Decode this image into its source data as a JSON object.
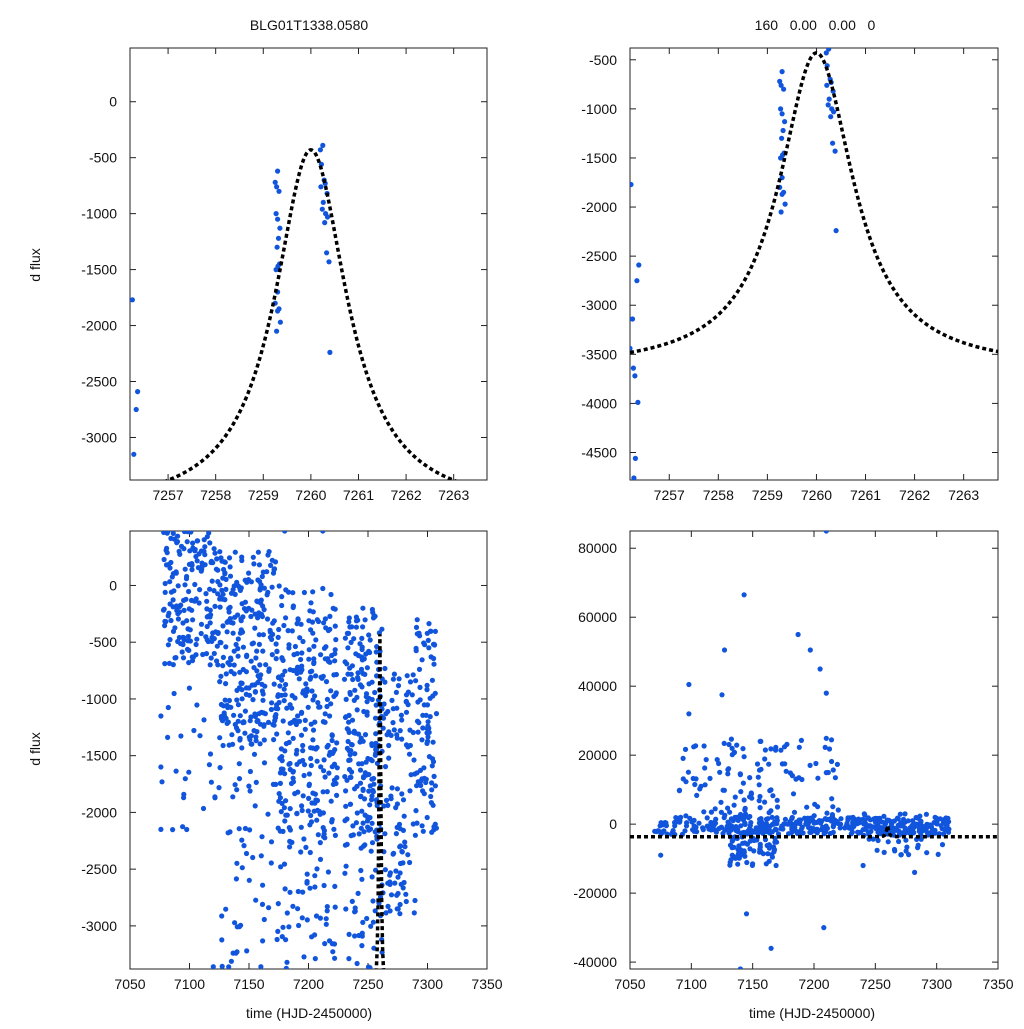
{
  "header": {
    "left_title": "BLG01T1338.0580",
    "right_title": "160   0.00   0.00   0"
  },
  "labels": {
    "ylabel": "d flux",
    "xlabel": "time (HJD-2450000)"
  },
  "colors": {
    "points": "#1155dd",
    "model": "#000000"
  },
  "model": {
    "t0": 7260.0,
    "tE": 0.92,
    "f_peak": -430,
    "f_base": -3660
  },
  "chart_data": [
    {
      "id": "tl",
      "type": "scatter",
      "title": "BLG01T1338.0580",
      "ylabel": "d flux",
      "xlabel": "",
      "xlim": [
        7256.2,
        7263.7
      ],
      "ylim": [
        -3380,
        480
      ],
      "xticks": [
        7257,
        7258,
        7259,
        7260,
        7261,
        7262,
        7263
      ],
      "yticks": [
        0,
        -500,
        -1000,
        -1500,
        -2000,
        -2500,
        -3000
      ],
      "points": [
        [
          7256.25,
          -1770
        ],
        [
          7256.36,
          -2590
        ],
        [
          7256.33,
          -2750
        ],
        [
          7256.28,
          -3150
        ],
        [
          7259.25,
          -720
        ],
        [
          7259.3,
          -620
        ],
        [
          7259.28,
          -760
        ],
        [
          7259.33,
          -800
        ],
        [
          7259.27,
          -1000
        ],
        [
          7259.3,
          -1050
        ],
        [
          7259.35,
          -1130
        ],
        [
          7259.32,
          -1220
        ],
        [
          7259.29,
          -1300
        ],
        [
          7259.34,
          -1450
        ],
        [
          7259.31,
          -1470
        ],
        [
          7259.27,
          -1500
        ],
        [
          7259.3,
          -1700
        ],
        [
          7259.25,
          -1800
        ],
        [
          7259.33,
          -1850
        ],
        [
          7259.28,
          -2050
        ],
        [
          7259.36,
          -1970
        ],
        [
          7259.3,
          -1870
        ],
        [
          7260.2,
          -430
        ],
        [
          7260.25,
          -390
        ],
        [
          7260.22,
          -560
        ],
        [
          7260.28,
          -700
        ],
        [
          7260.3,
          -730
        ],
        [
          7260.21,
          -760
        ],
        [
          7260.34,
          -820
        ],
        [
          7260.26,
          -900
        ],
        [
          7260.24,
          -960
        ],
        [
          7260.31,
          -1000
        ],
        [
          7260.35,
          -1030
        ],
        [
          7260.29,
          -1080
        ],
        [
          7260.33,
          -1350
        ],
        [
          7260.38,
          -1430
        ],
        [
          7260.4,
          -2240
        ]
      ]
    },
    {
      "id": "tr",
      "type": "scatter",
      "title": "160   0.00   0.00   0",
      "ylabel": "",
      "xlabel": "",
      "xlim": [
        7256.2,
        7263.7
      ],
      "ylim": [
        -4780,
        -380
      ],
      "xticks": [
        7257,
        7258,
        7259,
        7260,
        7261,
        7262,
        7263
      ],
      "yticks": [
        -500,
        -1000,
        -1500,
        -2000,
        -2500,
        -3000,
        -3500,
        -4000,
        -4500
      ],
      "points": [
        [
          7256.22,
          -1770
        ],
        [
          7256.38,
          -2590
        ],
        [
          7256.34,
          -2750
        ],
        [
          7256.25,
          -3140
        ],
        [
          7256.2,
          -3440
        ],
        [
          7256.27,
          -3640
        ],
        [
          7256.3,
          -3720
        ],
        [
          7256.36,
          -3990
        ],
        [
          7256.31,
          -4560
        ],
        [
          7256.28,
          -4760
        ],
        [
          7259.25,
          -720
        ],
        [
          7259.3,
          -620
        ],
        [
          7259.28,
          -760
        ],
        [
          7259.33,
          -800
        ],
        [
          7259.27,
          -1000
        ],
        [
          7259.3,
          -1050
        ],
        [
          7259.35,
          -1130
        ],
        [
          7259.32,
          -1220
        ],
        [
          7259.29,
          -1300
        ],
        [
          7259.34,
          -1450
        ],
        [
          7259.31,
          -1470
        ],
        [
          7259.27,
          -1500
        ],
        [
          7259.3,
          -1700
        ],
        [
          7259.25,
          -1800
        ],
        [
          7259.33,
          -1850
        ],
        [
          7259.28,
          -2050
        ],
        [
          7259.36,
          -1970
        ],
        [
          7259.3,
          -1870
        ],
        [
          7260.2,
          -430
        ],
        [
          7260.25,
          -390
        ],
        [
          7260.22,
          -560
        ],
        [
          7260.28,
          -700
        ],
        [
          7260.3,
          -730
        ],
        [
          7260.21,
          -760
        ],
        [
          7260.34,
          -820
        ],
        [
          7260.26,
          -900
        ],
        [
          7260.24,
          -960
        ],
        [
          7260.31,
          -1000
        ],
        [
          7260.35,
          -1030
        ],
        [
          7260.29,
          -1080
        ],
        [
          7260.33,
          -1350
        ],
        [
          7260.38,
          -1430
        ],
        [
          7260.4,
          -2240
        ]
      ]
    },
    {
      "id": "bl",
      "type": "scatter",
      "title": "",
      "ylabel": "d flux",
      "xlabel": "time (HJD-2450000)",
      "xlim": [
        7050,
        7350
      ],
      "ylim": [
        -3380,
        480
      ],
      "xticks": [
        7050,
        7100,
        7150,
        7200,
        7250,
        7300,
        7350
      ],
      "yticks": [
        0,
        -500,
        -1000,
        -1500,
        -2000,
        -2500,
        -3000
      ],
      "generator": {
        "seed": 7,
        "groups": [
          {
            "x": [
              7078,
              7125
            ],
            "y": [
              -700,
              480
            ],
            "n": 170
          },
          {
            "x": [
              7076,
              7125
            ],
            "y": [
              -2200,
              -400
            ],
            "n": 30
          },
          {
            "x": [
              7125,
              7175
            ],
            "y": [
              -1400,
              300
            ],
            "n": 260
          },
          {
            "x": [
              7125,
              7175
            ],
            "y": [
              -3380,
              -1400
            ],
            "n": 60
          },
          {
            "x": [
              7175,
              7225
            ],
            "y": [
              -2300,
              0
            ],
            "n": 270
          },
          {
            "x": [
              7175,
              7225
            ],
            "y": [
              -3380,
              -2300
            ],
            "n": 50
          },
          {
            "x": [
              7230,
              7262
            ],
            "y": [
              -2200,
              -200
            ],
            "n": 200
          },
          {
            "x": [
              7230,
              7262
            ],
            "y": [
              -3380,
              -2200
            ],
            "n": 45
          },
          {
            "x": [
              7262,
              7290
            ],
            "y": [
              -2900,
              -700
            ],
            "n": 110
          },
          {
            "x": [
              7290,
              7308
            ],
            "y": [
              -2200,
              -300
            ],
            "n": 90
          }
        ]
      },
      "points": [
        [
          7082,
          480
        ],
        [
          7098,
          480
        ],
        [
          7180,
          480
        ],
        [
          7212,
          480
        ],
        [
          7076,
          -1150
        ],
        [
          7076,
          -1600
        ],
        [
          7076,
          -2150
        ],
        [
          7095,
          -1870
        ],
        [
          7120,
          -3360
        ],
        [
          7160,
          -3360
        ]
      ]
    },
    {
      "id": "br",
      "type": "scatter",
      "title": "",
      "ylabel": "",
      "xlabel": "time (HJD-2450000)",
      "xlim": [
        7050,
        7350
      ],
      "ylim": [
        -42000,
        85000
      ],
      "xticks": [
        7050,
        7100,
        7150,
        7200,
        7250,
        7300,
        7350
      ],
      "yticks": [
        80000,
        60000,
        40000,
        20000,
        0,
        -20000,
        -40000
      ],
      "generator": {
        "seed": 11,
        "groups": [
          {
            "x": [
              7070,
              7310
            ],
            "y": [
              -3000,
              2000
            ],
            "n": 380
          },
          {
            "x": [
              7090,
              7220
            ],
            "y": [
              1000,
              25000
            ],
            "n": 130
          },
          {
            "x": [
              7130,
              7170
            ],
            "y": [
              -12000,
              -1000
            ],
            "n": 80
          },
          {
            "x": [
              7240,
              7310
            ],
            "y": [
              -9000,
              3000
            ],
            "n": 60
          }
        ]
      },
      "points": [
        [
          7143,
          66500
        ],
        [
          7210,
          85000
        ],
        [
          7187,
          55000
        ],
        [
          7197,
          50500
        ],
        [
          7127,
          50500
        ],
        [
          7205,
          45000
        ],
        [
          7098,
          40500
        ],
        [
          7125,
          37500
        ],
        [
          7145,
          -26000
        ],
        [
          7165,
          -36000
        ],
        [
          7140,
          -42000
        ],
        [
          7208,
          -30000
        ],
        [
          7282,
          -14000
        ],
        [
          7240,
          -12000
        ],
        [
          7075,
          -9000
        ],
        [
          7098,
          32000
        ],
        [
          7210,
          38000
        ]
      ]
    }
  ]
}
